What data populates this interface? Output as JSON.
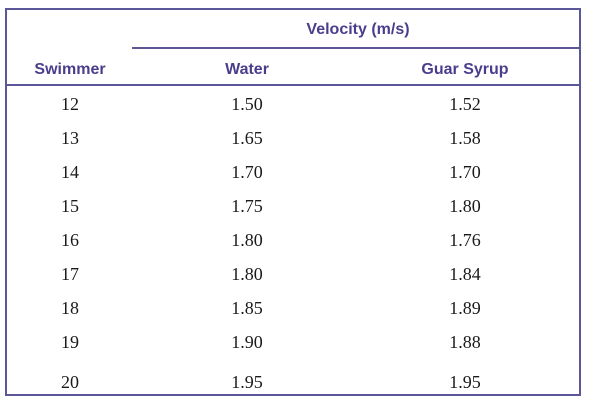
{
  "table": {
    "group_header": "Velocity (m/s)",
    "columns": [
      "Swimmer",
      "Water",
      "Guar Syrup"
    ],
    "rows": [
      [
        "12",
        "1.50",
        "1.52"
      ],
      [
        "13",
        "1.65",
        "1.58"
      ],
      [
        "14",
        "1.70",
        "1.70"
      ],
      [
        "15",
        "1.75",
        "1.80"
      ],
      [
        "16",
        "1.80",
        "1.76"
      ],
      [
        "17",
        "1.80",
        "1.84"
      ],
      [
        "18",
        "1.85",
        "1.89"
      ],
      [
        "19",
        "1.90",
        "1.88"
      ],
      [
        "20",
        "1.95",
        "1.95"
      ]
    ]
  },
  "colors": {
    "border": "#5b5798",
    "header_text": "#4a3e8c",
    "body_text": "#1a1a1a"
  }
}
